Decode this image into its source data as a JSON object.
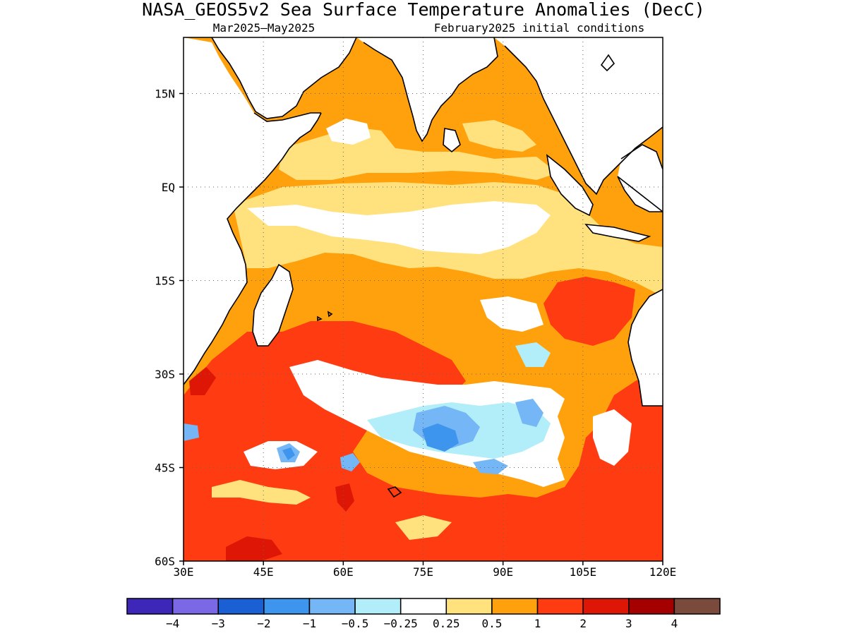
{
  "title": "NASA_GEOS5v2 Sea Surface Temperature Anomalies (DecC)",
  "subtitle_left": "Mar2025–May2025",
  "subtitle_right": "February2025 initial conditions",
  "map": {
    "lon_range": [
      30,
      120
    ],
    "lat_range": [
      -60,
      24
    ],
    "x_ticks": [
      "30E",
      "45E",
      "60E",
      "75E",
      "90E",
      "105E",
      "120E"
    ],
    "y_ticks": [
      "15N",
      "EQ",
      "15S",
      "30S",
      "45S",
      "60S"
    ],
    "land_color": "#ffffff",
    "coastline_color": "#000000",
    "grid": "dotted"
  },
  "colorbar": {
    "labels": [
      "−4",
      "−3",
      "−2",
      "−1",
      "−0.5",
      "−0.25",
      "0.25",
      "0.5",
      "1",
      "2",
      "3",
      "4"
    ],
    "colors": [
      "#3d27b8",
      "#7b68e6",
      "#1a5fd3",
      "#3d95ee",
      "#74b6f6",
      "#b2eefa",
      "#ffffff",
      "#ffe27e",
      "#ffa10c",
      "#ff3b12",
      "#dd1606",
      "#a50000",
      "#7a4b3d"
    ]
  }
}
